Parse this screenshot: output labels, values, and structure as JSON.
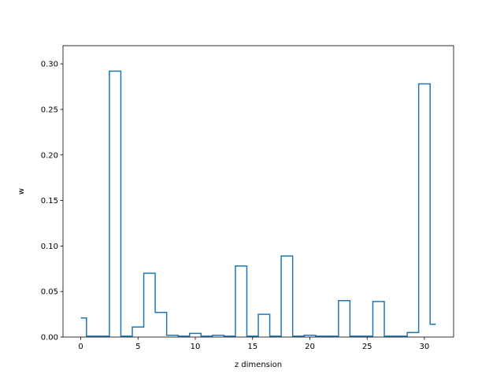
{
  "chart_data": {
    "type": "line",
    "drawstyle": "steps-mid",
    "title": "",
    "xlabel": "z dimension",
    "ylabel": "w",
    "xlim": [
      -1.55,
      32.55
    ],
    "ylim": [
      0,
      0.32
    ],
    "xticks": [
      0,
      5,
      10,
      15,
      20,
      25,
      30
    ],
    "yticks": [
      0.0,
      0.05,
      0.1,
      0.15,
      0.2,
      0.25,
      0.3
    ],
    "ytick_labels": [
      "0.00",
      "0.05",
      "0.10",
      "0.15",
      "0.20",
      "0.25",
      "0.30"
    ],
    "grid": false,
    "color": "#1f77b4",
    "x": [
      0,
      1,
      2,
      3,
      4,
      5,
      6,
      7,
      8,
      9,
      10,
      11,
      12,
      13,
      14,
      15,
      16,
      17,
      18,
      19,
      20,
      21,
      22,
      23,
      24,
      25,
      26,
      27,
      28,
      29,
      30,
      31
    ],
    "values": [
      0.021,
      0.001,
      0.001,
      0.292,
      0.001,
      0.011,
      0.07,
      0.027,
      0.002,
      0.001,
      0.004,
      0.001,
      0.002,
      0.001,
      0.078,
      0.001,
      0.025,
      0.001,
      0.089,
      0.001,
      0.002,
      0.001,
      0.001,
      0.04,
      0.001,
      0.001,
      0.039,
      0.001,
      0.001,
      0.005,
      0.278,
      0.014
    ]
  }
}
